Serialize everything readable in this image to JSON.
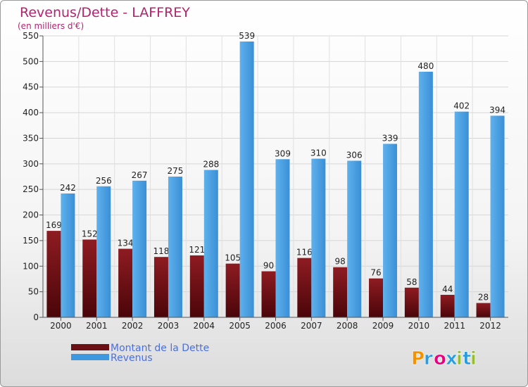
{
  "chart_data": {
    "type": "bar",
    "title": "Revenus/Dette - LAFFREY",
    "subtitle": "(en milliers d'€)",
    "categories": [
      "2000",
      "2001",
      "2002",
      "2003",
      "2004",
      "2005",
      "2006",
      "2007",
      "2008",
      "2009",
      "2010",
      "2011",
      "2012"
    ],
    "series": [
      {
        "name": "Montant de la Dette",
        "color": "#7a1418",
        "values": [
          169,
          152,
          134,
          118,
          121,
          105,
          90,
          116,
          98,
          76,
          58,
          44,
          28
        ]
      },
      {
        "name": "Revenus",
        "color": "#3d98df",
        "values": [
          242,
          256,
          267,
          275,
          288,
          539,
          309,
          310,
          306,
          339,
          480,
          402,
          394
        ]
      }
    ],
    "ylim": [
      0,
      550
    ],
    "yticks": [
      0,
      50,
      100,
      150,
      200,
      250,
      300,
      350,
      400,
      450,
      500,
      550
    ],
    "grid": true,
    "legend_position": "bottom-left"
  },
  "logo": {
    "text": "Proxiti",
    "colors": [
      "#f39200",
      "#2a9de0",
      "#e6007e",
      "#2a9de0",
      "#95c11f",
      "#2a9de0",
      "#95c11f"
    ]
  }
}
